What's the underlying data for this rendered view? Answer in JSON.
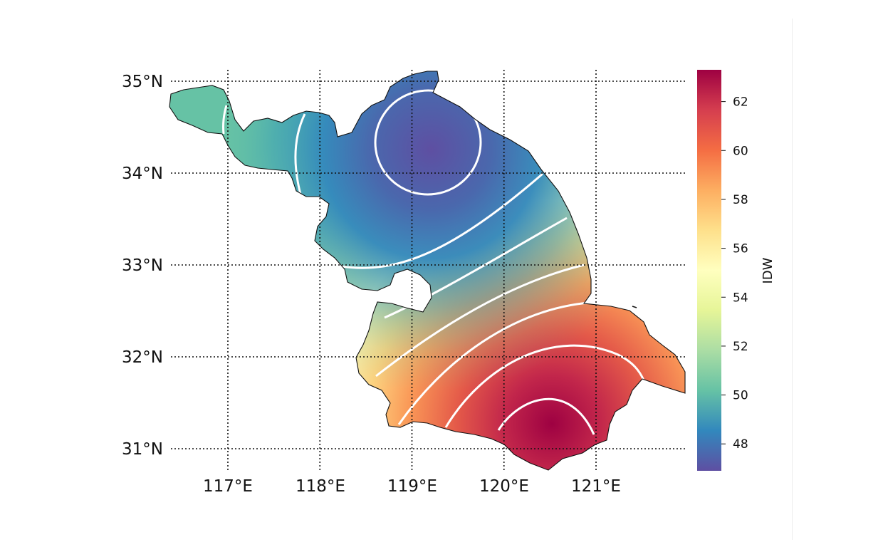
{
  "map": {
    "lat_labels": [
      "35°N",
      "34°N",
      "33°N",
      "32°N",
      "31°N"
    ],
    "lon_labels": [
      "117°E",
      "118°E",
      "119°E",
      "120°E",
      "121°E"
    ],
    "lat_values": [
      35,
      34,
      33,
      32,
      31
    ],
    "lon_values": [
      117,
      118,
      119,
      120,
      121
    ],
    "gridlines": "dotted",
    "contour_color": "#ffffff",
    "colormap": "Spectral_r"
  },
  "colorbar": {
    "label": "IDW",
    "ticks": [
      "48",
      "50",
      "52",
      "54",
      "56",
      "58",
      "60",
      "62"
    ],
    "tick_values": [
      48,
      50,
      52,
      54,
      56,
      58,
      60,
      62
    ],
    "range": [
      46.9,
      63.3
    ],
    "colors": [
      "#5e4fa2",
      "#3288bd",
      "#66c2a5",
      "#abdda4",
      "#e6f598",
      "#ffffbf",
      "#fee08b",
      "#fdae61",
      "#f46d43",
      "#d53e4f",
      "#9e0142"
    ]
  }
}
